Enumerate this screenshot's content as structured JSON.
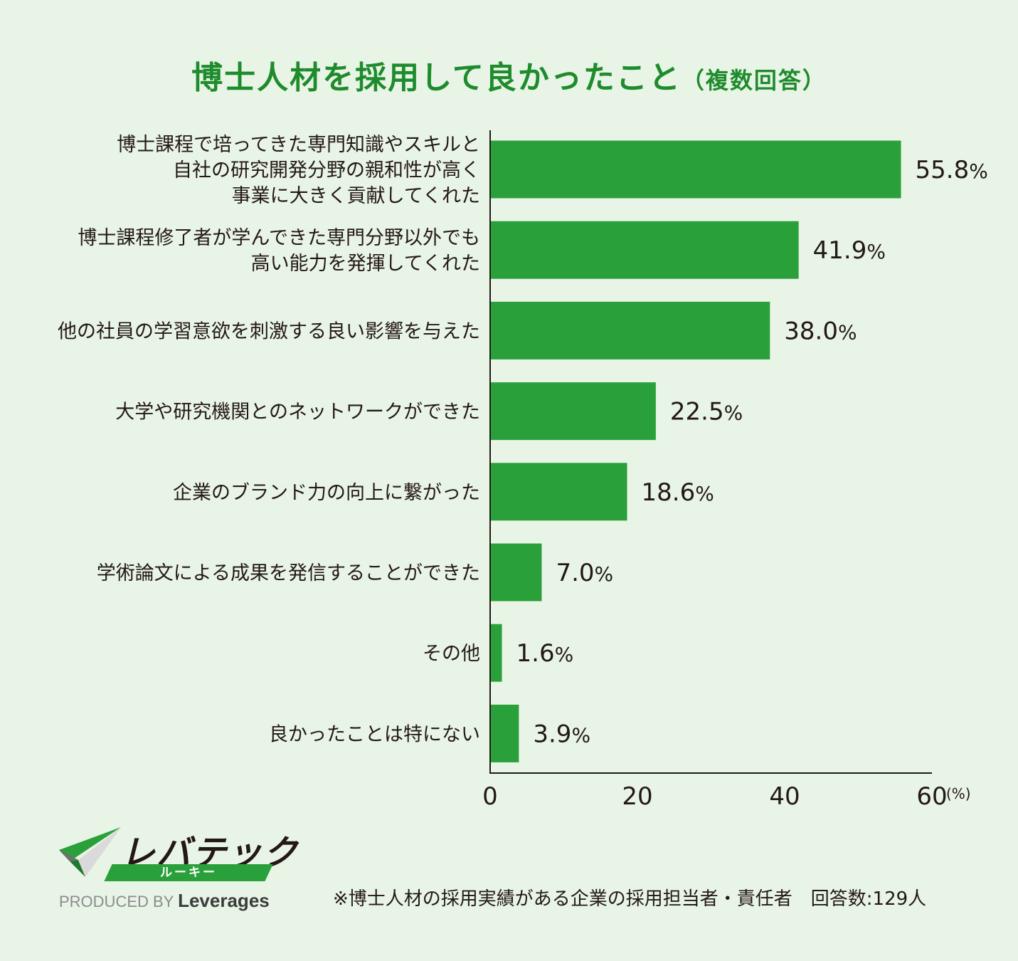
{
  "title": "博士人材を採用して良かったこと",
  "title_paren": "（複数回答）",
  "chart_data": {
    "type": "bar",
    "orientation": "horizontal",
    "categories": [
      [
        "博士課程で培ってきた専門知識やスキルと",
        "自社の研究開発分野の親和性が高く",
        "事業に大きく貢献してくれた"
      ],
      [
        "博士課程修了者が学んできた専門分野以外でも",
        "高い能力を発揮してくれた"
      ],
      [
        "他の社員の学習意欲を刺激する良い影響を与えた"
      ],
      [
        "大学や研究機関とのネットワークができた"
      ],
      [
        "企業のブランド力の向上に繋がった"
      ],
      [
        "学術論文による成果を発信することができた"
      ],
      [
        "その他"
      ],
      [
        "良かったことは特にない"
      ]
    ],
    "values": [
      55.8,
      41.9,
      38.0,
      22.5,
      18.6,
      7.0,
      1.6,
      3.9
    ],
    "value_labels": [
      "55.8",
      "41.9",
      "38.0",
      "22.5",
      "18.6",
      "7.0",
      "1.6",
      "3.9"
    ],
    "value_suffix": "%",
    "xlim": [
      0,
      60
    ],
    "xticks": [
      "0",
      "20",
      "40",
      "60"
    ],
    "x_unit": "(%)",
    "bar_color": "#2aa03b",
    "grid": false
  },
  "footnote": "※博士人材の採用実績がある企業の採用担当者・責任者　回答数:129人",
  "logo": {
    "brand": "レバテック",
    "sub": "ルーキー",
    "produced_by": "PRODUCED BY",
    "company": "Leverages"
  }
}
